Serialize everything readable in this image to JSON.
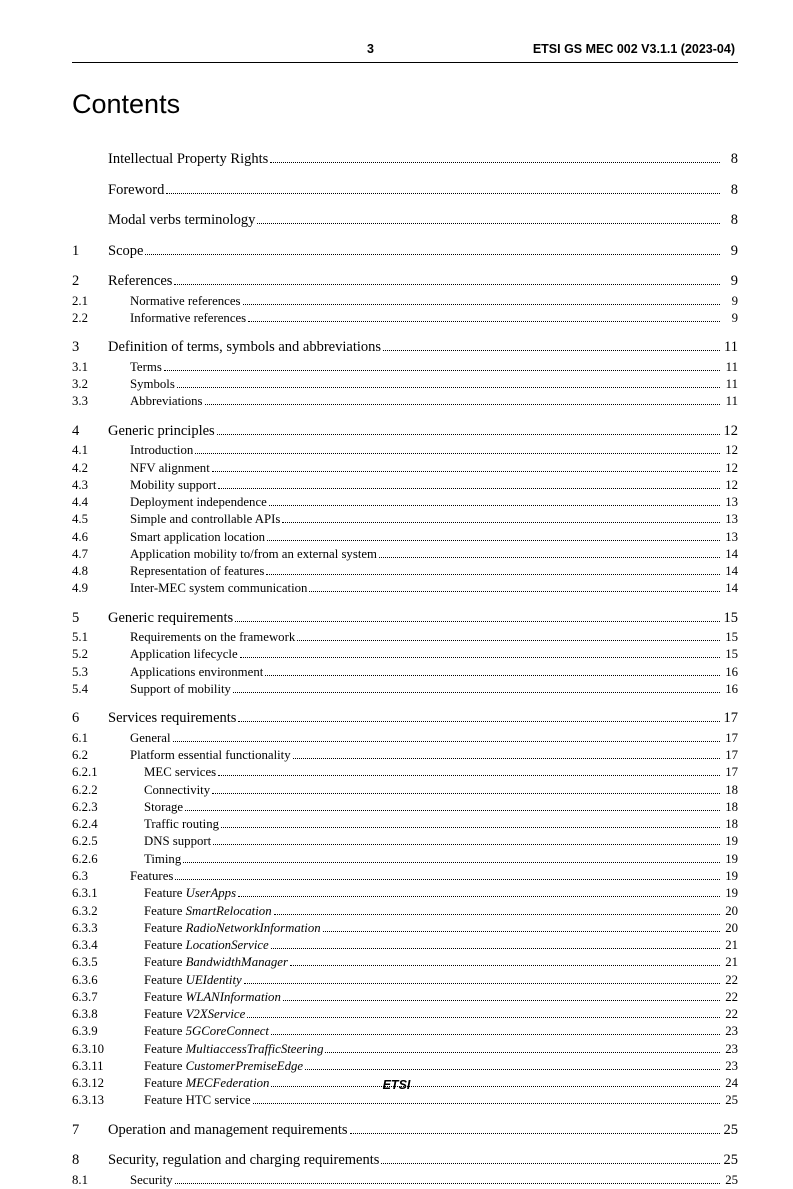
{
  "header": {
    "page_num": "3",
    "doc_id": "ETSI GS MEC 002 V3.1.1 (2023-04)"
  },
  "title": "Contents",
  "footer": "ETSI",
  "toc_blocks": [
    [
      {
        "lvl": 0,
        "num": "",
        "label": "Intellectual Property Rights",
        "pg": "8"
      }
    ],
    [
      {
        "lvl": 0,
        "num": "",
        "label": "Foreword",
        "pg": "8"
      }
    ],
    [
      {
        "lvl": 0,
        "num": "",
        "label": "Modal verbs terminology",
        "pg": "8"
      }
    ],
    [
      {
        "lvl": 0,
        "num": "1",
        "label": "Scope",
        "pg": "9"
      }
    ],
    [
      {
        "lvl": 0,
        "num": "2",
        "label": "References",
        "pg": "9"
      },
      {
        "lvl": 1,
        "num": "2.1",
        "label": "Normative references",
        "pg": "9"
      },
      {
        "lvl": 1,
        "num": "2.2",
        "label": "Informative references",
        "pg": "9"
      }
    ],
    [
      {
        "lvl": 0,
        "num": "3",
        "label": "Definition of terms, symbols and abbreviations",
        "pg": "11"
      },
      {
        "lvl": 1,
        "num": "3.1",
        "label": "Terms",
        "pg": "11"
      },
      {
        "lvl": 1,
        "num": "3.2",
        "label": "Symbols",
        "pg": "11"
      },
      {
        "lvl": 1,
        "num": "3.3",
        "label": "Abbreviations",
        "pg": "11"
      }
    ],
    [
      {
        "lvl": 0,
        "num": "4",
        "label": "Generic principles",
        "pg": "12"
      },
      {
        "lvl": 1,
        "num": "4.1",
        "label": "Introduction",
        "pg": "12"
      },
      {
        "lvl": 1,
        "num": "4.2",
        "label": "NFV alignment",
        "pg": "12"
      },
      {
        "lvl": 1,
        "num": "4.3",
        "label": "Mobility support",
        "pg": "12"
      },
      {
        "lvl": 1,
        "num": "4.4",
        "label": "Deployment independence",
        "pg": "13"
      },
      {
        "lvl": 1,
        "num": "4.5",
        "label": "Simple and controllable APIs",
        "pg": "13"
      },
      {
        "lvl": 1,
        "num": "4.6",
        "label": "Smart application location",
        "pg": "13"
      },
      {
        "lvl": 1,
        "num": "4.7",
        "label": "Application mobility to/from an external system",
        "pg": "14"
      },
      {
        "lvl": 1,
        "num": "4.8",
        "label": "Representation of features",
        "pg": "14"
      },
      {
        "lvl": 1,
        "num": "4.9",
        "label": "Inter-MEC system communication",
        "pg": "14"
      }
    ],
    [
      {
        "lvl": 0,
        "num": "5",
        "label": "Generic requirements",
        "pg": "15"
      },
      {
        "lvl": 1,
        "num": "5.1",
        "label": "Requirements on the framework",
        "pg": "15"
      },
      {
        "lvl": 1,
        "num": "5.2",
        "label": "Application lifecycle",
        "pg": "15"
      },
      {
        "lvl": 1,
        "num": "5.3",
        "label": "Applications environment",
        "pg": "16"
      },
      {
        "lvl": 1,
        "num": "5.4",
        "label": "Support of mobility",
        "pg": "16"
      }
    ],
    [
      {
        "lvl": 0,
        "num": "6",
        "label": "Services requirements",
        "pg": "17"
      },
      {
        "lvl": 1,
        "num": "6.1",
        "label": "General",
        "pg": "17"
      },
      {
        "lvl": 1,
        "num": "6.2",
        "label": "Platform essential functionality",
        "pg": "17"
      },
      {
        "lvl": 2,
        "num": "6.2.1",
        "label": "MEC services",
        "pg": "17"
      },
      {
        "lvl": 2,
        "num": "6.2.2",
        "label": "Connectivity",
        "pg": "18"
      },
      {
        "lvl": 2,
        "num": "6.2.3",
        "label": "Storage",
        "pg": "18"
      },
      {
        "lvl": 2,
        "num": "6.2.4",
        "label": "Traffic routing",
        "pg": "18"
      },
      {
        "lvl": 2,
        "num": "6.2.5",
        "label": "DNS support",
        "pg": "19"
      },
      {
        "lvl": 2,
        "num": "6.2.6",
        "label": "Timing",
        "pg": "19"
      },
      {
        "lvl": 1,
        "num": "6.3",
        "label": "Features",
        "pg": "19"
      },
      {
        "lvl": 2,
        "num": "6.3.1",
        "label": "Feature ",
        "ital": "UserApps",
        "pg": "19"
      },
      {
        "lvl": 2,
        "num": "6.3.2",
        "label": "Feature ",
        "ital": "SmartRelocation",
        "pg": "20"
      },
      {
        "lvl": 2,
        "num": "6.3.3",
        "label": "Feature ",
        "ital": "RadioNetworkInformation",
        "pg": "20"
      },
      {
        "lvl": 2,
        "num": "6.3.4",
        "label": "Feature ",
        "ital": "LocationService",
        "pg": "21"
      },
      {
        "lvl": 2,
        "num": "6.3.5",
        "label": "Feature ",
        "ital": "BandwidthManager",
        "pg": "21"
      },
      {
        "lvl": 2,
        "num": "6.3.6",
        "label": "Feature ",
        "ital": "UEIdentity",
        "pg": "22"
      },
      {
        "lvl": 2,
        "num": "6.3.7",
        "label": "Feature ",
        "ital": "WLANInformation",
        "pg": "22"
      },
      {
        "lvl": 2,
        "num": "6.3.8",
        "label": "Feature ",
        "ital": "V2XService",
        "pg": "22"
      },
      {
        "lvl": 2,
        "num": "6.3.9",
        "label": "Feature ",
        "ital": "5GCoreConnect",
        "pg": "23"
      },
      {
        "lvl": 2,
        "num": "6.3.10",
        "label": "Feature ",
        "ital": "MultiaccessTrafficSteering",
        "pg": "23"
      },
      {
        "lvl": 2,
        "num": "6.3.11",
        "label": "Feature ",
        "ital": "CustomerPremiseEdge",
        "pg": "23"
      },
      {
        "lvl": 2,
        "num": "6.3.12",
        "label": "Feature ",
        "ital": "MECFederation",
        "pg": "24"
      },
      {
        "lvl": 2,
        "num": "6.3.13",
        "label": "Feature HTC service",
        "pg": "25"
      }
    ],
    [
      {
        "lvl": 0,
        "num": "7",
        "label": "Operation and management requirements",
        "pg": "25"
      }
    ],
    [
      {
        "lvl": 0,
        "num": "8",
        "label": "Security, regulation and charging requirements",
        "pg": "25"
      },
      {
        "lvl": 1,
        "num": "8.1",
        "label": "Security",
        "pg": "25"
      }
    ]
  ]
}
